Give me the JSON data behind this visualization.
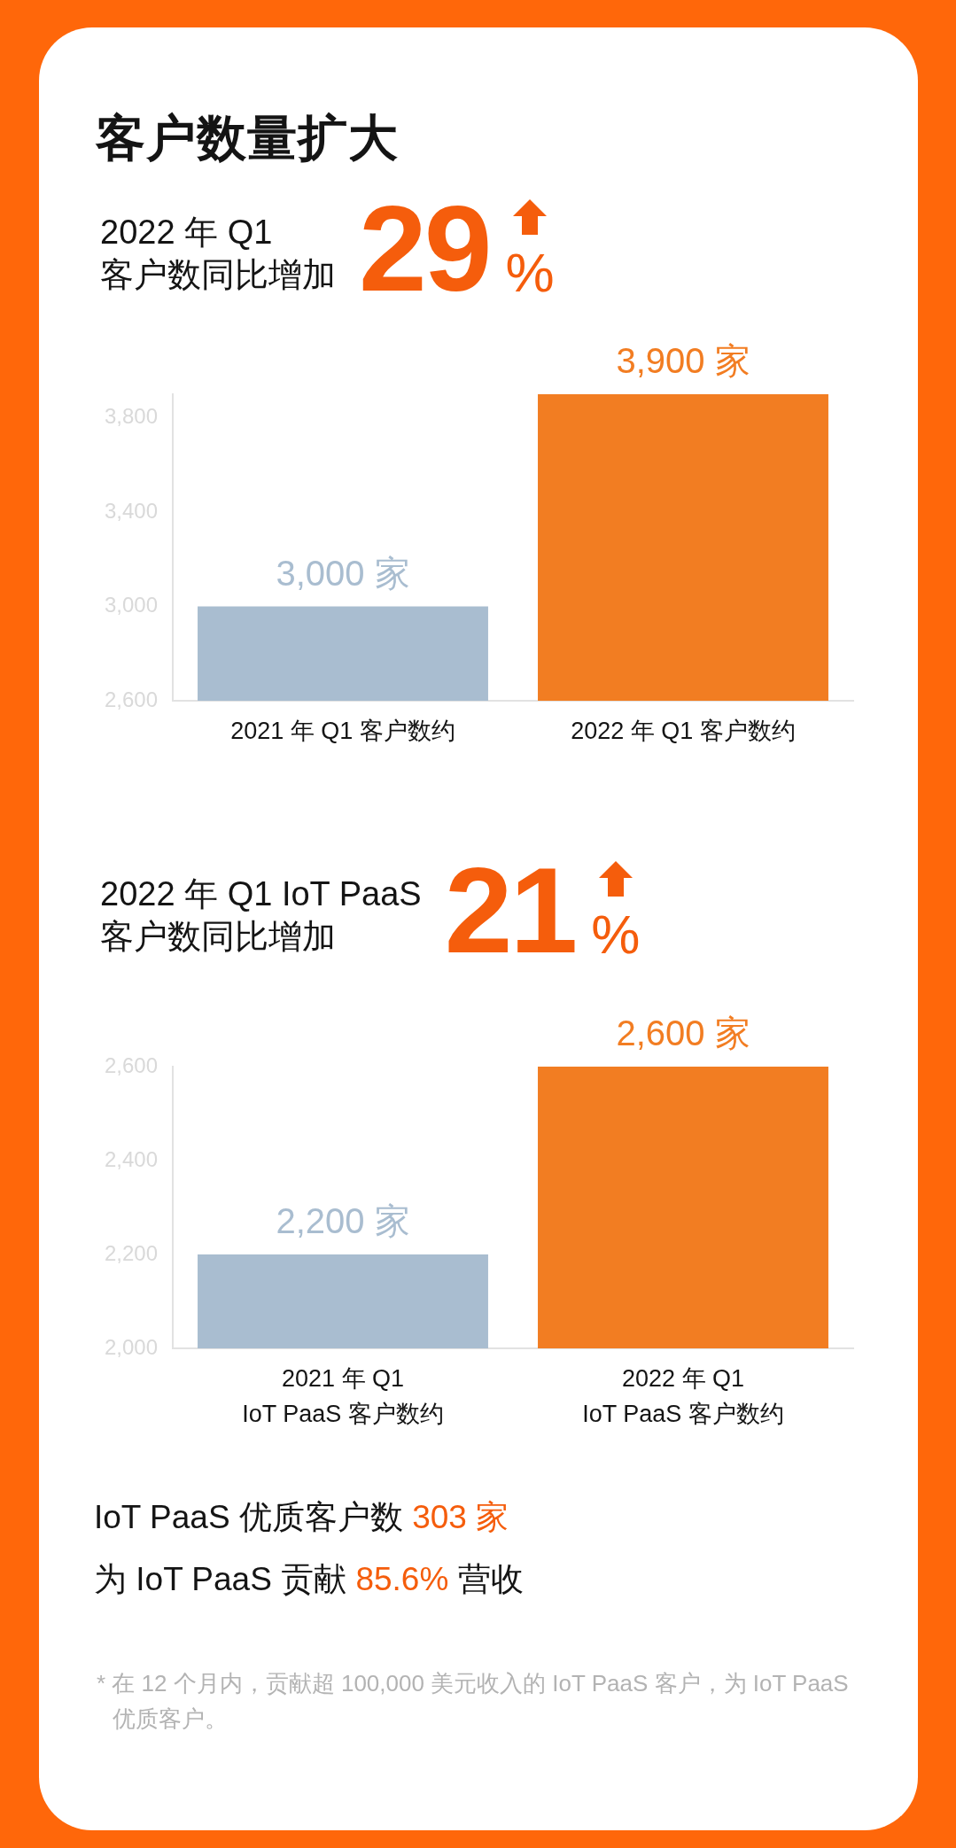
{
  "chart_data": [
    {
      "type": "bar",
      "title": "客户数量扩大",
      "subtitle": "2022 年 Q1\n客户数同比增加",
      "annotations": [
        "29%"
      ],
      "categories": [
        "2021 年 Q1 客户数约",
        "2022 年 Q1 客户数约"
      ],
      "values": [
        3000,
        3900
      ],
      "colors": [
        "#a9bdd0",
        "#f27d22"
      ],
      "value_labels": [
        "3,000 家",
        "3,900 家"
      ],
      "ylim": [
        2600,
        3900
      ],
      "yticks": [
        {
          "value": 2600,
          "label": "2,600"
        },
        {
          "value": 3000,
          "label": "3,000"
        },
        {
          "value": 3400,
          "label": "3,400"
        },
        {
          "value": 3800,
          "label": "3,800"
        }
      ]
    },
    {
      "type": "bar",
      "subtitle": "2022 年 Q1 IoT PaaS\n客户数同比增加",
      "annotations": [
        "21%",
        "IoT PaaS 优质客户数 303 家",
        "为 IoT PaaS 贡献 85.6% 营收",
        "* 在 12 个月内，贡献超 100,000 美元收入的 IoT PaaS 客户，为 IoT PaaS 优质客户。"
      ],
      "categories": [
        "2021 年 Q1\nIoT PaaS 客户数约",
        "2022 年 Q1\nIoT PaaS 客户数约"
      ],
      "values": [
        2200,
        2600
      ],
      "colors": [
        "#a9bdd0",
        "#f27d22"
      ],
      "value_labels": [
        "2,200 家",
        "2,600 家"
      ],
      "ylim": [
        2000,
        2600
      ],
      "yticks": [
        {
          "value": 2000,
          "label": "2,000"
        },
        {
          "value": 2200,
          "label": "2,200"
        },
        {
          "value": 2400,
          "label": "2,400"
        },
        {
          "value": 2600,
          "label": "2,600"
        }
      ]
    }
  ]
}
